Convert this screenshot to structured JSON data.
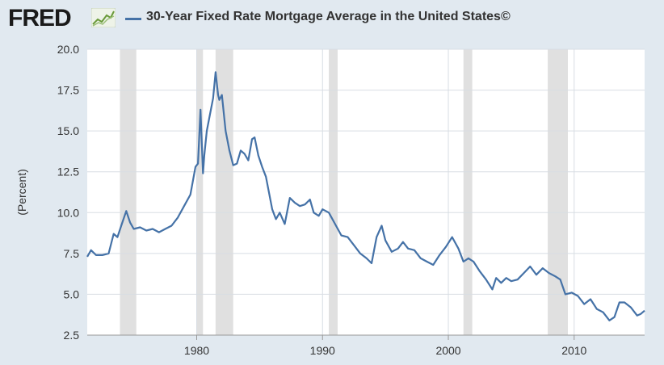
{
  "header": {
    "logo_text": "FRED",
    "title": "30-Year Fixed Rate Mortgage Average in the United States©"
  },
  "colors": {
    "series": "#4572a7",
    "recession": "#e0e0e0",
    "plot_bg": "#ffffff",
    "page_bg": "#e1e9f0",
    "grid": "#d8dde3"
  },
  "chart_data": {
    "type": "line",
    "title": "30-Year Fixed Rate Mortgage Average in the United States©",
    "xlabel": "",
    "ylabel": "(Percent)",
    "xlim": [
      1971.3,
      2015.6
    ],
    "ylim": [
      2.5,
      20.0
    ],
    "yticks": [
      "20.0",
      "17.5",
      "15.0",
      "12.5",
      "10.0",
      "7.5",
      "5.0",
      "2.5"
    ],
    "xticks": [
      "1980",
      "1990",
      "2000",
      "2010"
    ],
    "grid": true,
    "legend": "top-left",
    "recessions": [
      [
        1973.9,
        1975.2
      ],
      [
        1980.0,
        1980.5
      ],
      [
        1981.5,
        1982.9
      ],
      [
        1990.5,
        1991.2
      ],
      [
        2001.2,
        2001.9
      ],
      [
        2007.9,
        2009.5
      ]
    ],
    "series": [
      {
        "name": "30-Year Fixed Rate Mortgage Average in the United States©",
        "x": [
          1971.3,
          1971.6,
          1972.0,
          1972.5,
          1973.0,
          1973.4,
          1973.7,
          1974.0,
          1974.4,
          1974.7,
          1975.0,
          1975.5,
          1976.0,
          1976.5,
          1977.0,
          1977.5,
          1978.0,
          1978.5,
          1979.0,
          1979.5,
          1979.9,
          1980.1,
          1980.3,
          1980.5,
          1980.6,
          1980.8,
          1981.0,
          1981.3,
          1981.5,
          1981.7,
          1981.8,
          1982.0,
          1982.3,
          1982.6,
          1982.9,
          1983.2,
          1983.5,
          1983.8,
          1984.1,
          1984.4,
          1984.6,
          1984.9,
          1985.2,
          1985.5,
          1986.0,
          1986.3,
          1986.6,
          1987.0,
          1987.4,
          1987.8,
          1988.2,
          1988.6,
          1989.0,
          1989.3,
          1989.7,
          1990.0,
          1990.5,
          1991.0,
          1991.5,
          1992.0,
          1992.5,
          1993.0,
          1993.5,
          1993.9,
          1994.3,
          1994.7,
          1995.0,
          1995.5,
          1996.0,
          1996.4,
          1996.8,
          1997.3,
          1997.8,
          1998.3,
          1998.8,
          1999.3,
          1999.8,
          2000.3,
          2000.8,
          2001.2,
          2001.6,
          2002.0,
          2002.5,
          2003.0,
          2003.5,
          2003.8,
          2004.2,
          2004.6,
          2005.0,
          2005.5,
          2006.0,
          2006.5,
          2007.0,
          2007.5,
          2008.0,
          2008.5,
          2008.9,
          2009.3,
          2009.8,
          2010.3,
          2010.8,
          2011.3,
          2011.8,
          2012.3,
          2012.8,
          2013.2,
          2013.6,
          2014.0,
          2014.5,
          2015.0,
          2015.3,
          2015.6
        ],
        "values": [
          7.3,
          7.7,
          7.4,
          7.4,
          7.5,
          8.7,
          8.5,
          9.2,
          10.1,
          9.4,
          9.0,
          9.1,
          8.9,
          9.0,
          8.8,
          9.0,
          9.2,
          9.7,
          10.4,
          11.1,
          12.8,
          13.0,
          16.3,
          12.4,
          13.5,
          15.0,
          15.8,
          17.0,
          18.6,
          17.2,
          16.9,
          17.2,
          15.0,
          13.8,
          12.9,
          13.0,
          13.8,
          13.6,
          13.2,
          14.5,
          14.6,
          13.5,
          12.8,
          12.2,
          10.2,
          9.6,
          10.0,
          9.3,
          10.9,
          10.6,
          10.4,
          10.5,
          10.8,
          10.0,
          9.8,
          10.2,
          10.0,
          9.3,
          8.6,
          8.5,
          8.0,
          7.5,
          7.2,
          6.9,
          8.5,
          9.2,
          8.3,
          7.6,
          7.8,
          8.2,
          7.8,
          7.7,
          7.2,
          7.0,
          6.8,
          7.4,
          7.9,
          8.5,
          7.8,
          7.0,
          7.2,
          7.0,
          6.4,
          5.9,
          5.3,
          6.0,
          5.7,
          6.0,
          5.8,
          5.9,
          6.3,
          6.7,
          6.2,
          6.6,
          6.3,
          6.1,
          5.9,
          5.0,
          5.1,
          4.9,
          4.4,
          4.7,
          4.1,
          3.9,
          3.4,
          3.6,
          4.5,
          4.5,
          4.2,
          3.7,
          3.8,
          4.0
        ]
      }
    ]
  }
}
